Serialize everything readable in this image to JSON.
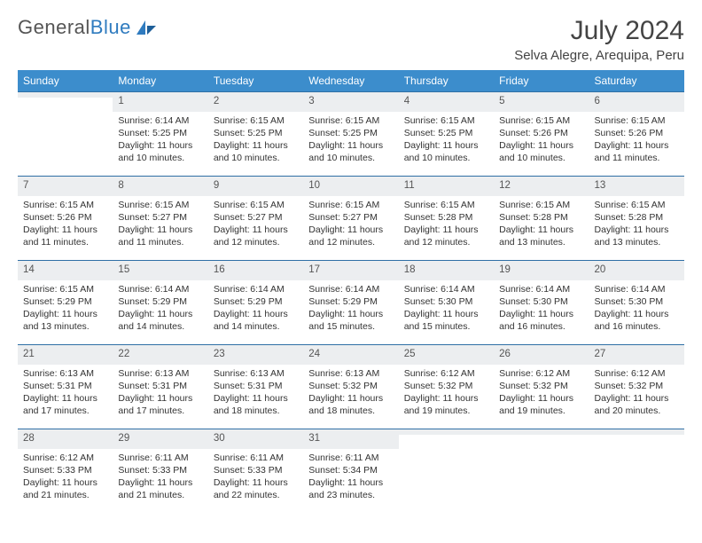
{
  "logo": {
    "text_gray": "General",
    "text_blue": "Blue"
  },
  "title": "July 2024",
  "location": "Selva Alegre, Arequipa, Peru",
  "colors": {
    "header_bg": "#3c8dcc",
    "header_text": "#ffffff",
    "row_divider": "#2f6fa5",
    "daynum_bg": "#eceef0",
    "body_text": "#333333",
    "logo_gray": "#555555",
    "logo_blue": "#2f7bbf",
    "page_bg": "#ffffff"
  },
  "font": {
    "family": "Arial",
    "header_size_pt": 12,
    "title_size_pt": 30,
    "cell_size_pt": 10.5
  },
  "day_headers": [
    "Sunday",
    "Monday",
    "Tuesday",
    "Wednesday",
    "Thursday",
    "Friday",
    "Saturday"
  ],
  "weeks": [
    [
      {
        "n": "",
        "sr": "",
        "ss": "",
        "dl": ""
      },
      {
        "n": "1",
        "sr": "Sunrise: 6:14 AM",
        "ss": "Sunset: 5:25 PM",
        "dl": "Daylight: 11 hours and 10 minutes."
      },
      {
        "n": "2",
        "sr": "Sunrise: 6:15 AM",
        "ss": "Sunset: 5:25 PM",
        "dl": "Daylight: 11 hours and 10 minutes."
      },
      {
        "n": "3",
        "sr": "Sunrise: 6:15 AM",
        "ss": "Sunset: 5:25 PM",
        "dl": "Daylight: 11 hours and 10 minutes."
      },
      {
        "n": "4",
        "sr": "Sunrise: 6:15 AM",
        "ss": "Sunset: 5:25 PM",
        "dl": "Daylight: 11 hours and 10 minutes."
      },
      {
        "n": "5",
        "sr": "Sunrise: 6:15 AM",
        "ss": "Sunset: 5:26 PM",
        "dl": "Daylight: 11 hours and 10 minutes."
      },
      {
        "n": "6",
        "sr": "Sunrise: 6:15 AM",
        "ss": "Sunset: 5:26 PM",
        "dl": "Daylight: 11 hours and 11 minutes."
      }
    ],
    [
      {
        "n": "7",
        "sr": "Sunrise: 6:15 AM",
        "ss": "Sunset: 5:26 PM",
        "dl": "Daylight: 11 hours and 11 minutes."
      },
      {
        "n": "8",
        "sr": "Sunrise: 6:15 AM",
        "ss": "Sunset: 5:27 PM",
        "dl": "Daylight: 11 hours and 11 minutes."
      },
      {
        "n": "9",
        "sr": "Sunrise: 6:15 AM",
        "ss": "Sunset: 5:27 PM",
        "dl": "Daylight: 11 hours and 12 minutes."
      },
      {
        "n": "10",
        "sr": "Sunrise: 6:15 AM",
        "ss": "Sunset: 5:27 PM",
        "dl": "Daylight: 11 hours and 12 minutes."
      },
      {
        "n": "11",
        "sr": "Sunrise: 6:15 AM",
        "ss": "Sunset: 5:28 PM",
        "dl": "Daylight: 11 hours and 12 minutes."
      },
      {
        "n": "12",
        "sr": "Sunrise: 6:15 AM",
        "ss": "Sunset: 5:28 PM",
        "dl": "Daylight: 11 hours and 13 minutes."
      },
      {
        "n": "13",
        "sr": "Sunrise: 6:15 AM",
        "ss": "Sunset: 5:28 PM",
        "dl": "Daylight: 11 hours and 13 minutes."
      }
    ],
    [
      {
        "n": "14",
        "sr": "Sunrise: 6:15 AM",
        "ss": "Sunset: 5:29 PM",
        "dl": "Daylight: 11 hours and 13 minutes."
      },
      {
        "n": "15",
        "sr": "Sunrise: 6:14 AM",
        "ss": "Sunset: 5:29 PM",
        "dl": "Daylight: 11 hours and 14 minutes."
      },
      {
        "n": "16",
        "sr": "Sunrise: 6:14 AM",
        "ss": "Sunset: 5:29 PM",
        "dl": "Daylight: 11 hours and 14 minutes."
      },
      {
        "n": "17",
        "sr": "Sunrise: 6:14 AM",
        "ss": "Sunset: 5:29 PM",
        "dl": "Daylight: 11 hours and 15 minutes."
      },
      {
        "n": "18",
        "sr": "Sunrise: 6:14 AM",
        "ss": "Sunset: 5:30 PM",
        "dl": "Daylight: 11 hours and 15 minutes."
      },
      {
        "n": "19",
        "sr": "Sunrise: 6:14 AM",
        "ss": "Sunset: 5:30 PM",
        "dl": "Daylight: 11 hours and 16 minutes."
      },
      {
        "n": "20",
        "sr": "Sunrise: 6:14 AM",
        "ss": "Sunset: 5:30 PM",
        "dl": "Daylight: 11 hours and 16 minutes."
      }
    ],
    [
      {
        "n": "21",
        "sr": "Sunrise: 6:13 AM",
        "ss": "Sunset: 5:31 PM",
        "dl": "Daylight: 11 hours and 17 minutes."
      },
      {
        "n": "22",
        "sr": "Sunrise: 6:13 AM",
        "ss": "Sunset: 5:31 PM",
        "dl": "Daylight: 11 hours and 17 minutes."
      },
      {
        "n": "23",
        "sr": "Sunrise: 6:13 AM",
        "ss": "Sunset: 5:31 PM",
        "dl": "Daylight: 11 hours and 18 minutes."
      },
      {
        "n": "24",
        "sr": "Sunrise: 6:13 AM",
        "ss": "Sunset: 5:32 PM",
        "dl": "Daylight: 11 hours and 18 minutes."
      },
      {
        "n": "25",
        "sr": "Sunrise: 6:12 AM",
        "ss": "Sunset: 5:32 PM",
        "dl": "Daylight: 11 hours and 19 minutes."
      },
      {
        "n": "26",
        "sr": "Sunrise: 6:12 AM",
        "ss": "Sunset: 5:32 PM",
        "dl": "Daylight: 11 hours and 19 minutes."
      },
      {
        "n": "27",
        "sr": "Sunrise: 6:12 AM",
        "ss": "Sunset: 5:32 PM",
        "dl": "Daylight: 11 hours and 20 minutes."
      }
    ],
    [
      {
        "n": "28",
        "sr": "Sunrise: 6:12 AM",
        "ss": "Sunset: 5:33 PM",
        "dl": "Daylight: 11 hours and 21 minutes."
      },
      {
        "n": "29",
        "sr": "Sunrise: 6:11 AM",
        "ss": "Sunset: 5:33 PM",
        "dl": "Daylight: 11 hours and 21 minutes."
      },
      {
        "n": "30",
        "sr": "Sunrise: 6:11 AM",
        "ss": "Sunset: 5:33 PM",
        "dl": "Daylight: 11 hours and 22 minutes."
      },
      {
        "n": "31",
        "sr": "Sunrise: 6:11 AM",
        "ss": "Sunset: 5:34 PM",
        "dl": "Daylight: 11 hours and 23 minutes."
      },
      {
        "n": "",
        "sr": "",
        "ss": "",
        "dl": ""
      },
      {
        "n": "",
        "sr": "",
        "ss": "",
        "dl": ""
      },
      {
        "n": "",
        "sr": "",
        "ss": "",
        "dl": ""
      }
    ]
  ]
}
